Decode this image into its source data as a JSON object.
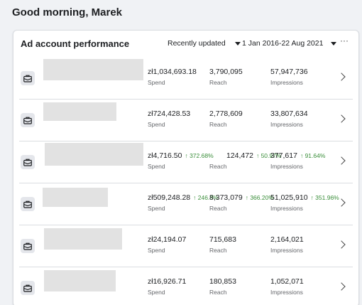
{
  "greeting": "Good morning, Marek",
  "card": {
    "title": "Ad account performance",
    "sort_label": "Recently updated",
    "date_range": "1 Jan 2016-22 Aug 2021",
    "more_label": "···"
  },
  "labels": {
    "spend": "Spend",
    "reach": "Reach",
    "impressions": "Impressions"
  },
  "rows": [
    {
      "spend": "zł1,034,693.18",
      "reach": "3,790,095",
      "impressions": "57,947,736",
      "spend_delta": "",
      "reach_delta": "",
      "impressions_delta": ""
    },
    {
      "spend": "zł724,428.53",
      "reach": "2,778,609",
      "impressions": "33,807,634",
      "spend_delta": "",
      "reach_delta": "",
      "impressions_delta": ""
    },
    {
      "spend": "zł4,716.50",
      "reach": "124,472",
      "impressions": "377,617",
      "spend_delta": "↑ 372.68%",
      "reach_delta": "↑ 50.97%",
      "impressions_delta": "↑ 91.64%"
    },
    {
      "spend": "zł509,248.28",
      "reach": "8,373,079",
      "impressions": "51,025,910",
      "spend_delta": "↑ 246.8%",
      "reach_delta": "↑ 366.20%",
      "impressions_delta": "↑ 351.96%"
    },
    {
      "spend": "zł24,194.07",
      "reach": "715,683",
      "impressions": "2,164,021",
      "spend_delta": "",
      "reach_delta": "",
      "impressions_delta": ""
    },
    {
      "spend": "zł16,926.71",
      "reach": "180,853",
      "impressions": "1,052,071",
      "spend_delta": "",
      "reach_delta": "",
      "impressions_delta": ""
    }
  ],
  "colors": {
    "positive": "#3a8e3a",
    "placeholder": "#e2e2e2"
  }
}
